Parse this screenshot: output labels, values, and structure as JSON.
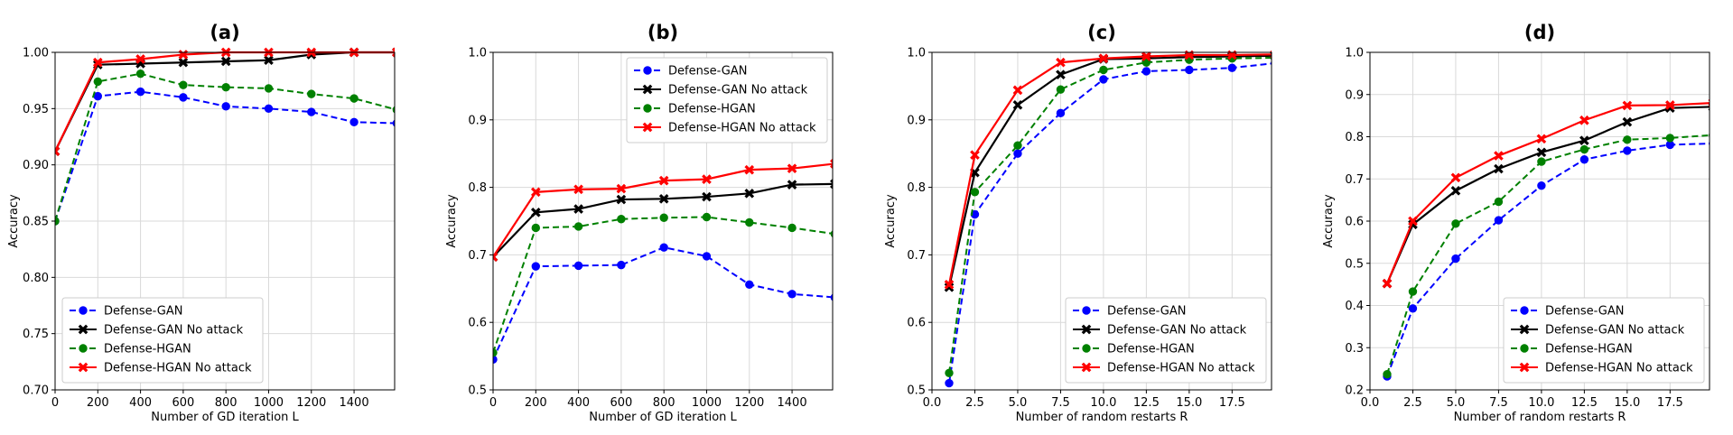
{
  "colors": {
    "Defense-GAN": "#0000ff",
    "Defense-GAN  No attack": "#000000",
    "Defense-HGAN": "#008000",
    "Defense-HGAN No attack": "#ff0000"
  },
  "chart_data": [
    {
      "type": "line",
      "title": "(a)",
      "xlabel": "Number of GD iteration L",
      "ylabel": "Accuracy",
      "xlim": [
        0,
        1590
      ],
      "ylim": [
        0.7,
        1.0
      ],
      "xticks": [
        0,
        200,
        400,
        600,
        800,
        1000,
        1200,
        1400
      ],
      "xtick_labels": [
        "0",
        "200",
        "400",
        "600",
        "800",
        "1000",
        "1200",
        "1400"
      ],
      "yticks": [
        0.7,
        0.75,
        0.8,
        0.85,
        0.9,
        0.95,
        1.0
      ],
      "ytick_labels": [
        "0.70",
        "0.75",
        "0.80",
        "0.85",
        "0.90",
        "0.95",
        "1.00"
      ],
      "legend_position": "lower-left",
      "grid": true,
      "x": [
        0,
        200,
        400,
        600,
        800,
        1000,
        1200,
        1400,
        1600
      ],
      "series": [
        {
          "name": "Defense-GAN",
          "style": "dashed",
          "marker": "circle",
          "values": [
            0.85,
            0.961,
            0.965,
            0.96,
            0.952,
            0.95,
            0.947,
            0.938,
            0.937
          ]
        },
        {
          "name": "Defense-GAN  No attack",
          "style": "solid",
          "marker": "x",
          "values": [
            0.912,
            0.989,
            0.99,
            0.991,
            0.992,
            0.993,
            0.998,
            1.0,
            1.0
          ]
        },
        {
          "name": "Defense-HGAN",
          "style": "dashed",
          "marker": "circle",
          "values": [
            0.85,
            0.974,
            0.981,
            0.971,
            0.969,
            0.968,
            0.963,
            0.959,
            0.949
          ]
        },
        {
          "name": "Defense-HGAN No attack",
          "style": "solid",
          "marker": "x",
          "values": [
            0.912,
            0.991,
            0.994,
            0.998,
            1.0,
            1.0,
            1.0,
            1.0,
            1.0
          ]
        }
      ]
    },
    {
      "type": "line",
      "title": "(b)",
      "xlabel": "Number of GD iteration L",
      "ylabel": "Accuracy",
      "xlim": [
        0,
        1590
      ],
      "ylim": [
        0.5,
        1.0
      ],
      "xticks": [
        0,
        200,
        400,
        600,
        800,
        1000,
        1200,
        1400
      ],
      "xtick_labels": [
        "0",
        "200",
        "400",
        "600",
        "800",
        "1000",
        "1200",
        "1400"
      ],
      "yticks": [
        0.5,
        0.6,
        0.7,
        0.8,
        0.9,
        1.0
      ],
      "ytick_labels": [
        "0.5",
        "0.6",
        "0.7",
        "0.8",
        "0.9",
        "1.0"
      ],
      "legend_position": "top-right",
      "grid": true,
      "x": [
        0,
        200,
        400,
        600,
        800,
        1000,
        1200,
        1400,
        1600
      ],
      "series": [
        {
          "name": "Defense-GAN",
          "style": "dashed",
          "marker": "circle",
          "values": [
            0.545,
            0.683,
            0.684,
            0.685,
            0.711,
            0.698,
            0.656,
            0.642,
            0.637
          ]
        },
        {
          "name": "Defense-GAN  No attack",
          "style": "solid",
          "marker": "x",
          "values": [
            0.697,
            0.763,
            0.768,
            0.782,
            0.783,
            0.786,
            0.791,
            0.804,
            0.805
          ]
        },
        {
          "name": "Defense-HGAN",
          "style": "dashed",
          "marker": "circle",
          "values": [
            0.555,
            0.74,
            0.742,
            0.753,
            0.755,
            0.756,
            0.748,
            0.74,
            0.731
          ]
        },
        {
          "name": "Defense-HGAN No attack",
          "style": "solid",
          "marker": "x",
          "values": [
            0.697,
            0.793,
            0.797,
            0.798,
            0.81,
            0.812,
            0.826,
            0.828,
            0.835
          ]
        }
      ]
    },
    {
      "type": "line",
      "title": "(c)",
      "xlabel": "Number of random restarts R",
      "ylabel": "Accuracy",
      "xlim": [
        0,
        19.8
      ],
      "ylim": [
        0.5,
        1.0
      ],
      "xticks": [
        0,
        2.5,
        5,
        7.5,
        10,
        12.5,
        15,
        17.5
      ],
      "xtick_labels": [
        "0.0",
        "2.5",
        "5.0",
        "7.5",
        "10.0",
        "12.5",
        "15.0",
        "17.5"
      ],
      "yticks": [
        0.5,
        0.6,
        0.7,
        0.8,
        0.9,
        1.0
      ],
      "ytick_labels": [
        "0.5",
        "0.6",
        "0.7",
        "0.8",
        "0.9",
        "1.0"
      ],
      "legend_position": "lower-right",
      "grid": true,
      "x": [
        1,
        2.5,
        5,
        7.5,
        10,
        12.5,
        15,
        17.5,
        20
      ],
      "series": [
        {
          "name": "Defense-GAN",
          "style": "dashed",
          "marker": "circle",
          "values": [
            0.51,
            0.76,
            0.85,
            0.91,
            0.96,
            0.972,
            0.974,
            0.977,
            0.984
          ]
        },
        {
          "name": "Defense-GAN  No attack",
          "style": "solid",
          "marker": "x",
          "values": [
            0.652,
            0.822,
            0.922,
            0.967,
            0.99,
            0.991,
            0.993,
            0.994,
            0.995
          ]
        },
        {
          "name": "Defense-HGAN",
          "style": "dashed",
          "marker": "circle",
          "values": [
            0.525,
            0.793,
            0.862,
            0.945,
            0.974,
            0.985,
            0.989,
            0.991,
            0.992
          ]
        },
        {
          "name": "Defense-HGAN No attack",
          "style": "solid",
          "marker": "x",
          "values": [
            0.656,
            0.848,
            0.944,
            0.985,
            0.991,
            0.994,
            0.996,
            0.996,
            0.997
          ]
        }
      ]
    },
    {
      "type": "line",
      "title": "(d)",
      "xlabel": "Number of random restarts R",
      "ylabel": "Accuracy",
      "xlim": [
        0,
        19.8
      ],
      "ylim": [
        0.2,
        1.0
      ],
      "xticks": [
        0,
        2.5,
        5,
        7.5,
        10,
        12.5,
        15,
        17.5
      ],
      "xtick_labels": [
        "0.0",
        "2.5",
        "5.0",
        "7.5",
        "10.0",
        "12.5",
        "15.0",
        "17.5"
      ],
      "yticks": [
        0.2,
        0.3,
        0.4,
        0.5,
        0.6,
        0.7,
        0.8,
        0.9,
        1.0
      ],
      "ytick_labels": [
        "0.2",
        "0.3",
        "0.4",
        "0.5",
        "0.6",
        "0.7",
        "0.8",
        "0.9",
        "1.0"
      ],
      "legend_position": "lower-right",
      "grid": true,
      "x": [
        1,
        2.5,
        5,
        7.5,
        10,
        12.5,
        15,
        17.5,
        20
      ],
      "series": [
        {
          "name": "Defense-GAN",
          "style": "dashed",
          "marker": "circle",
          "values": [
            0.232,
            0.393,
            0.511,
            0.602,
            0.684,
            0.746,
            0.767,
            0.781,
            0.784
          ]
        },
        {
          "name": "Defense-GAN  No attack",
          "style": "solid",
          "marker": "x",
          "values": [
            0.452,
            0.592,
            0.672,
            0.724,
            0.763,
            0.791,
            0.835,
            0.868,
            0.871
          ]
        },
        {
          "name": "Defense-HGAN",
          "style": "dashed",
          "marker": "circle",
          "values": [
            0.237,
            0.433,
            0.594,
            0.646,
            0.741,
            0.77,
            0.793,
            0.797,
            0.804
          ]
        },
        {
          "name": "Defense-HGAN No attack",
          "style": "solid",
          "marker": "x",
          "values": [
            0.452,
            0.6,
            0.703,
            0.755,
            0.795,
            0.839,
            0.874,
            0.875,
            0.88
          ]
        }
      ]
    }
  ]
}
